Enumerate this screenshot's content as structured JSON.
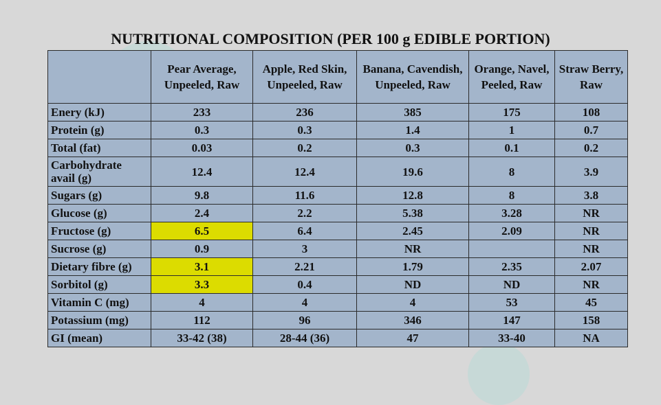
{
  "title": "NUTRITIONAL COMPOSITION (PER 100 g EDIBLE PORTION)",
  "table": {
    "columns": [
      "Pear Average, Unpeeled, Raw",
      "Apple, Red Skin, Unpeeled, Raw",
      "Banana, Cavendish, Unpeeled, Raw",
      "Orange, Navel, Peeled, Raw",
      "Straw Berry, Raw"
    ],
    "rows": [
      {
        "label": "Enery (kJ)",
        "cells": [
          "233",
          "236",
          "385",
          "175",
          "108"
        ]
      },
      {
        "label": "Protein (g)",
        "cells": [
          "0.3",
          "0.3",
          "1.4",
          "1",
          "0.7"
        ]
      },
      {
        "label": "Total (fat)",
        "cells": [
          "0.03",
          "0.2",
          "0.3",
          "0.1",
          "0.2"
        ]
      },
      {
        "label": "Carbohydrate avail (g)",
        "cells": [
          "12.4",
          "12.4",
          "19.6",
          "8",
          "3.9"
        ]
      },
      {
        "label": "Sugars (g)",
        "cells": [
          "9.8",
          "11.6",
          "12.8",
          "8",
          "3.8"
        ]
      },
      {
        "label": "Glucose (g)",
        "cells": [
          "2.4",
          "2.2",
          "5.38",
          "3.28",
          "NR"
        ]
      },
      {
        "label": "Fructose (g)",
        "cells": [
          "6.5",
          "6.4",
          "2.45",
          "2.09",
          "NR"
        ]
      },
      {
        "label": "Sucrose (g)",
        "cells": [
          "0.9",
          "3",
          "NR",
          null,
          "NR"
        ]
      },
      {
        "label": "Dietary fibre (g)",
        "cells": [
          "3.1",
          "2.21",
          "1.79",
          "2.35",
          "2.07"
        ]
      },
      {
        "label": "Sorbitol (g)",
        "cells": [
          "3.3",
          "0.4",
          "ND",
          "ND",
          "NR"
        ]
      },
      {
        "label": "Vitamin C (mg)",
        "cells": [
          "4",
          "4",
          "4",
          "53",
          "45"
        ]
      },
      {
        "label": "Potassium (mg)",
        "cells": [
          "112",
          "96",
          "346",
          "147",
          "158"
        ]
      },
      {
        "label": "GI (mean)",
        "cells": [
          "33-42 (38)",
          "28-44 (36)",
          "47",
          "33-40",
          "NA"
        ]
      }
    ],
    "highlight": {
      "color": "#dcdc00",
      "column": 0,
      "rows": [
        6,
        8,
        9
      ]
    }
  }
}
